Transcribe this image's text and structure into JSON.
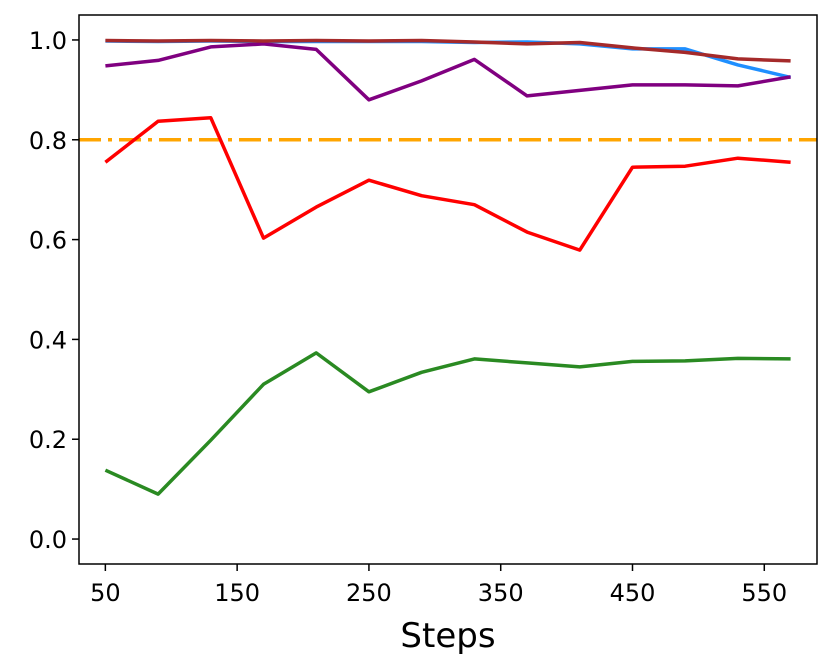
{
  "chart_data": {
    "type": "line",
    "xlabel": "Steps",
    "ylabel": "",
    "xlim": [
      30,
      590
    ],
    "ylim": [
      -0.05,
      1.05
    ],
    "xticks": [
      50,
      150,
      250,
      350,
      450,
      550
    ],
    "yticks": [
      0.0,
      0.2,
      0.4,
      0.6,
      0.8,
      1.0
    ],
    "xtick_labels": [
      "50",
      "150",
      "250",
      "350",
      "450",
      "550"
    ],
    "ytick_labels": [
      "0.0",
      "0.2",
      "0.4",
      "0.6",
      "0.8",
      "1.0"
    ],
    "grid": false,
    "legend": "none",
    "x": [
      50,
      90,
      130,
      170,
      210,
      250,
      290,
      330,
      370,
      410,
      450,
      490,
      530,
      570
    ],
    "series": [
      {
        "color": "#1f8fff",
        "values": [
          0.998,
          0.997,
          0.998,
          0.997,
          0.997,
          0.997,
          0.997,
          0.995,
          0.996,
          0.992,
          0.982,
          0.982,
          0.95,
          0.925
        ]
      },
      {
        "color": "#2a8a22",
        "values": [
          0.138,
          0.09,
          0.198,
          0.31,
          0.373,
          0.295,
          0.334,
          0.361,
          0.353,
          0.345,
          0.356,
          0.357,
          0.362,
          0.361
        ]
      },
      {
        "color": "#ff0000",
        "values": [
          0.755,
          0.837,
          0.844,
          0.603,
          0.665,
          0.719,
          0.688,
          0.67,
          0.615,
          0.579,
          0.745,
          0.747,
          0.763,
          0.755
        ]
      },
      {
        "color": "#800080",
        "values": [
          0.948,
          0.959,
          0.986,
          0.992,
          0.981,
          0.88,
          0.918,
          0.961,
          0.888,
          0.899,
          0.91,
          0.91,
          0.908,
          0.926
        ]
      },
      {
        "color": "#a52a2a",
        "values": [
          0.999,
          0.998,
          0.999,
          0.998,
          0.999,
          0.998,
          0.999,
          0.996,
          0.992,
          0.995,
          0.984,
          0.975,
          0.962,
          0.958
        ]
      }
    ],
    "reference_line": {
      "y": 0.8,
      "color": "#ffa500",
      "style": "dash-dot"
    }
  }
}
